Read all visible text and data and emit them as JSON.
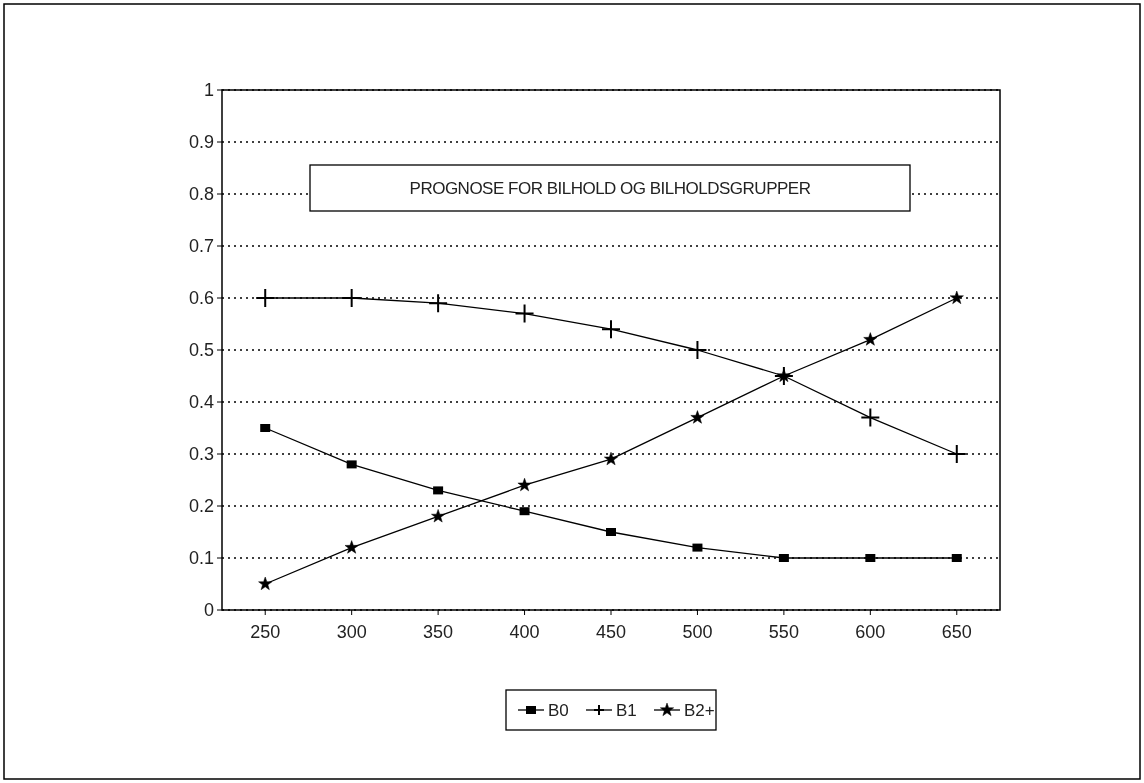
{
  "chart_data": {
    "type": "line",
    "title": "PROGNOSE FOR BILHOLD OG BILHOLDSGRUPPER",
    "x": [
      250,
      300,
      350,
      400,
      450,
      500,
      550,
      600,
      650
    ],
    "series": [
      {
        "name": "B0",
        "color": "#000000",
        "marker": "square",
        "values": [
          0.35,
          0.28,
          0.23,
          0.19,
          0.15,
          0.12,
          0.1,
          0.1,
          0.1
        ]
      },
      {
        "name": "B1",
        "color": "#000000",
        "marker": "cross",
        "values": [
          0.6,
          0.6,
          0.59,
          0.57,
          0.54,
          0.5,
          0.45,
          0.37,
          0.3
        ]
      },
      {
        "name": "B2+",
        "color": "#000000",
        "marker": "star",
        "values": [
          0.05,
          0.12,
          0.18,
          0.24,
          0.29,
          0.37,
          0.45,
          0.52,
          0.6
        ]
      }
    ],
    "xlim": [
      225,
      675
    ],
    "xticks": [
      250,
      300,
      350,
      400,
      450,
      500,
      550,
      600,
      650
    ],
    "ylim": [
      0,
      1
    ],
    "yticks": [
      0,
      0.1,
      0.2,
      0.3,
      0.4,
      0.5,
      0.6,
      0.7,
      0.8,
      0.9,
      1
    ],
    "grid": "y",
    "legend": "bottom",
    "line_style": "solid"
  }
}
